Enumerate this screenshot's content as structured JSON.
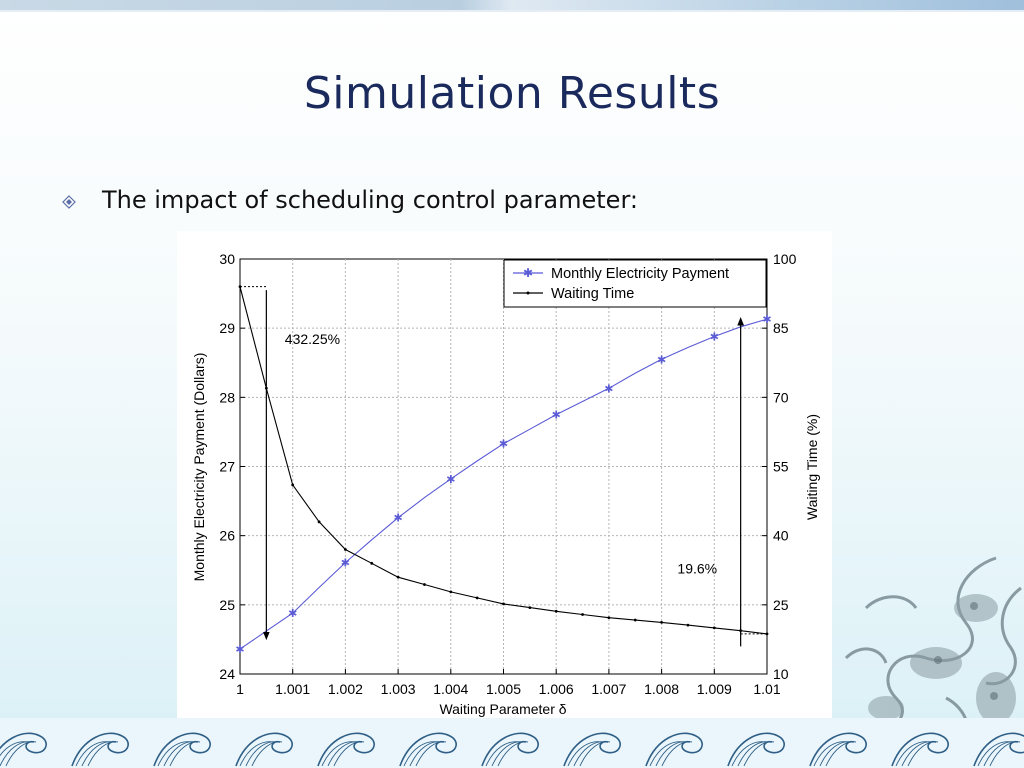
{
  "slide": {
    "title": "Simulation Results",
    "bullet": "The impact of scheduling control parameter:"
  },
  "colors": {
    "title": "#1b2a5c",
    "payment_series": "#5b5bd6",
    "waiting_series": "#000000"
  },
  "chart_data": {
    "type": "line",
    "xlabel": "Waiting Parameter δ",
    "ylabel_left": "Monthly Electricity Payment (Dollars)",
    "ylabel_right": "Waiting Time (%)",
    "xlim": [
      1,
      1.01
    ],
    "ylim_left": [
      24,
      30
    ],
    "ylim_right": [
      10,
      100
    ],
    "x_ticks": [
      "1",
      "1.001",
      "1.002",
      "1.003",
      "1.004",
      "1.005",
      "1.006",
      "1.007",
      "1.008",
      "1.009",
      "1.01"
    ],
    "y_ticks_left": [
      "24",
      "25",
      "26",
      "27",
      "28",
      "29",
      "30"
    ],
    "y_ticks_right": [
      "10",
      "25",
      "40",
      "55",
      "70",
      "85",
      "100"
    ],
    "grid": true,
    "legend_position": "top-right",
    "series": [
      {
        "name": "Monthly Electricity Payment",
        "axis": "left",
        "marker": "star",
        "x": [
          1,
          1.0005,
          1.001,
          1.0015,
          1.002,
          1.0025,
          1.003,
          1.0035,
          1.004,
          1.0045,
          1.005,
          1.0055,
          1.006,
          1.0065,
          1.007,
          1.0075,
          1.008,
          1.0085,
          1.009,
          1.0095,
          1.01
        ],
        "values": [
          24.36,
          24.62,
          24.88,
          25.25,
          25.61,
          25.94,
          26.26,
          26.55,
          26.82,
          27.08,
          27.33,
          27.54,
          27.75,
          27.94,
          28.13,
          28.35,
          28.55,
          28.72,
          28.88,
          29.02,
          29.13
        ]
      },
      {
        "name": "Waiting Time",
        "axis": "right",
        "marker": "dot",
        "x": [
          1,
          1.0005,
          1.001,
          1.0015,
          1.002,
          1.0025,
          1.003,
          1.0035,
          1.004,
          1.0045,
          1.005,
          1.0055,
          1.006,
          1.0065,
          1.007,
          1.0075,
          1.008,
          1.0085,
          1.009,
          1.0095,
          1.01
        ],
        "values": [
          94,
          72,
          51,
          43,
          37,
          34,
          31,
          29.4,
          27.8,
          26.5,
          25.2,
          24.4,
          23.6,
          22.9,
          22.2,
          21.7,
          21.2,
          20.6,
          20.0,
          19.4,
          18.7
        ]
      }
    ],
    "annotations": [
      {
        "text": "432.25%",
        "arrow": "down",
        "x": 1.0005,
        "from_left": 29.55,
        "to_left": 24.55,
        "label_x": 1.00085,
        "label_left": 28.77
      },
      {
        "text": "19.6%",
        "arrow": "up",
        "x": 1.0095,
        "from_left": 24.4,
        "to_left": 29.1,
        "label_x": 1.0083,
        "label_left": 25.45
      }
    ]
  }
}
